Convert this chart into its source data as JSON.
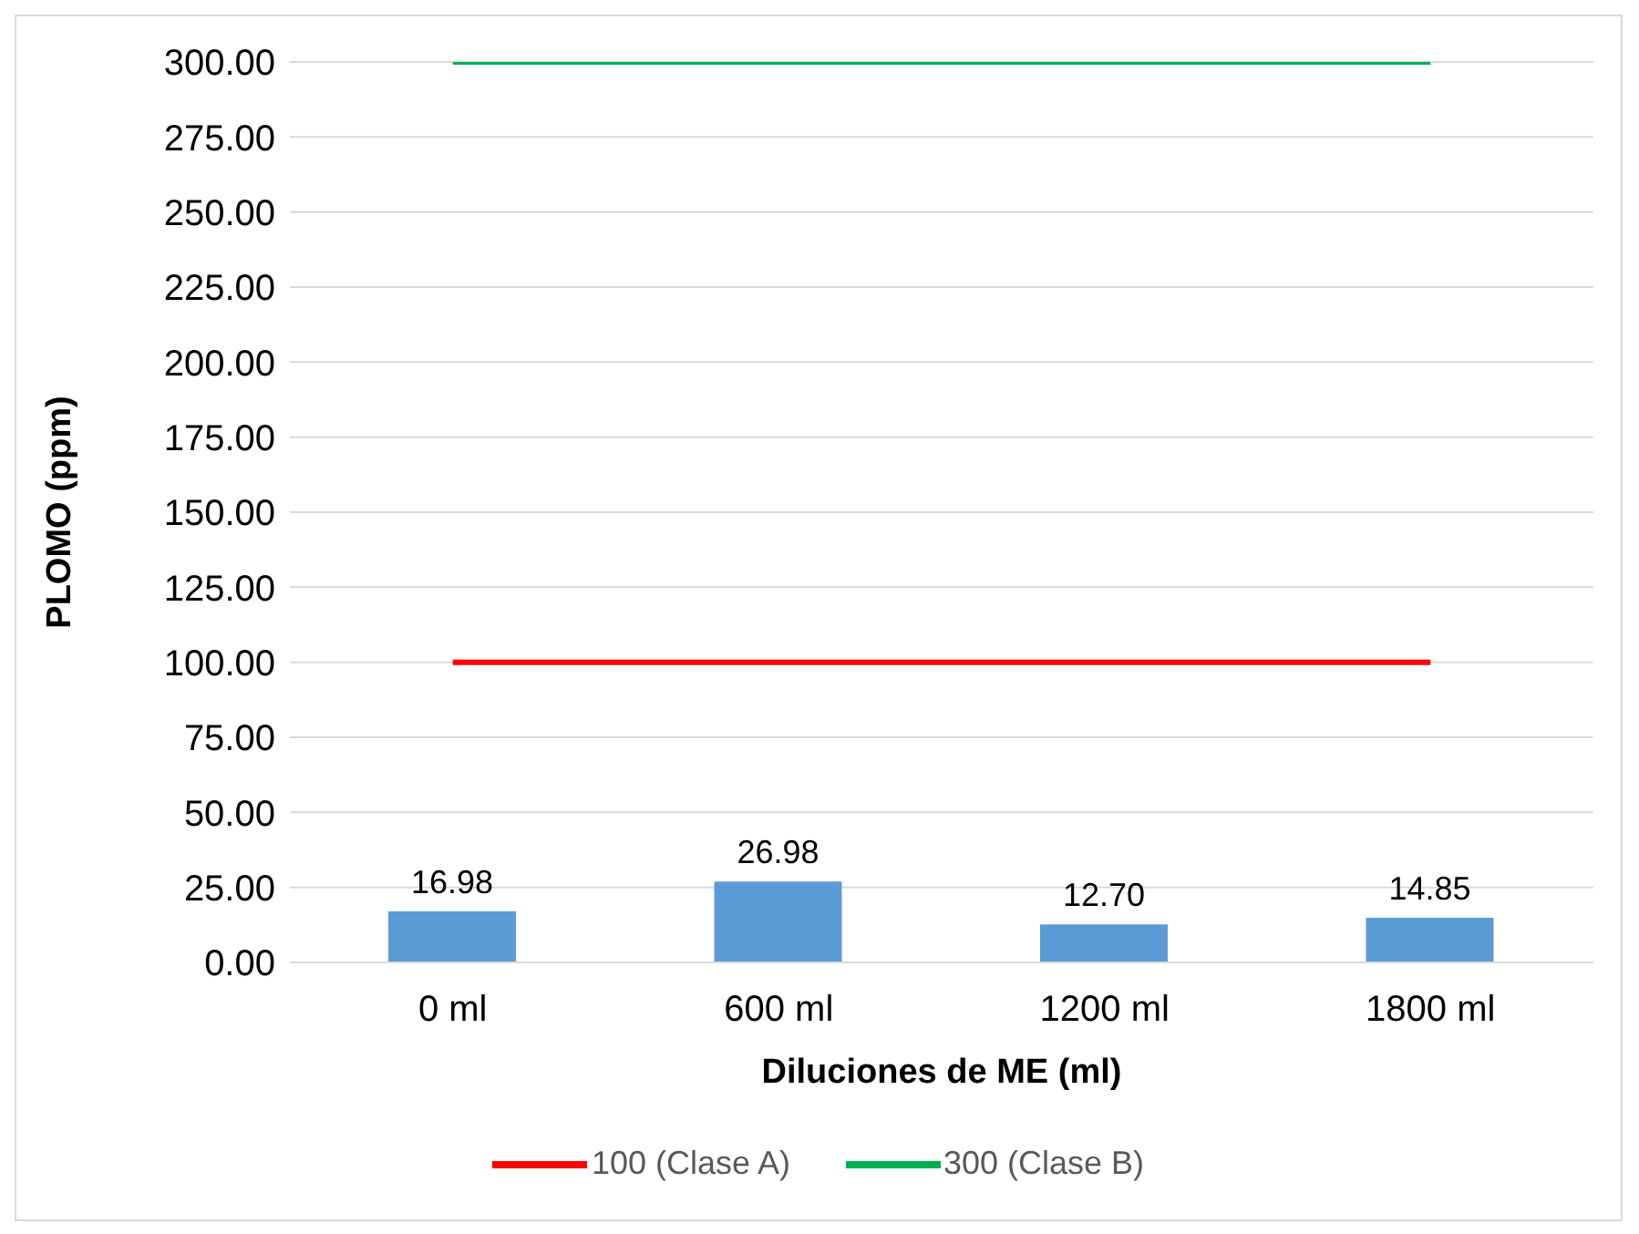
{
  "chart_data": {
    "type": "bar",
    "categories": [
      "0 ml",
      "600 ml",
      "1200 ml",
      "1800 ml"
    ],
    "series": [
      {
        "color": "#5b9bd5",
        "values": [
          16.98,
          26.98,
          12.7,
          14.85
        ],
        "value_labels": [
          "16.98",
          "26.98",
          "12.70",
          "14.85"
        ]
      },
      {
        "type": "line",
        "name": "100 (Clase A)",
        "color": "#ff0000",
        "values": [
          100,
          100,
          100,
          100
        ]
      },
      {
        "type": "line",
        "name": "300 (Clase B)",
        "color": "#00b050",
        "values": [
          300,
          300,
          300,
          300
        ]
      }
    ],
    "xlabel": "Diluciones de ME (ml)",
    "ylabel": "PLOMO (ppm)",
    "ylim": [
      0,
      300
    ],
    "yticks": [
      {
        "value": 0,
        "label": "0.00"
      },
      {
        "value": 25,
        "label": "25.00"
      },
      {
        "value": 50,
        "label": "50.00"
      },
      {
        "value": 75,
        "label": "75.00"
      },
      {
        "value": 100,
        "label": "100.00"
      },
      {
        "value": 125,
        "label": "125.00"
      },
      {
        "value": 150,
        "label": "150.00"
      },
      {
        "value": 175,
        "label": "175.00"
      },
      {
        "value": 200,
        "label": "200.00"
      },
      {
        "value": 225,
        "label": "225.00"
      },
      {
        "value": 250,
        "label": "250.00"
      },
      {
        "value": 275,
        "label": "275.00"
      },
      {
        "value": 300,
        "label": "300.00"
      }
    ],
    "grid": "y",
    "legend": "bottom"
  }
}
